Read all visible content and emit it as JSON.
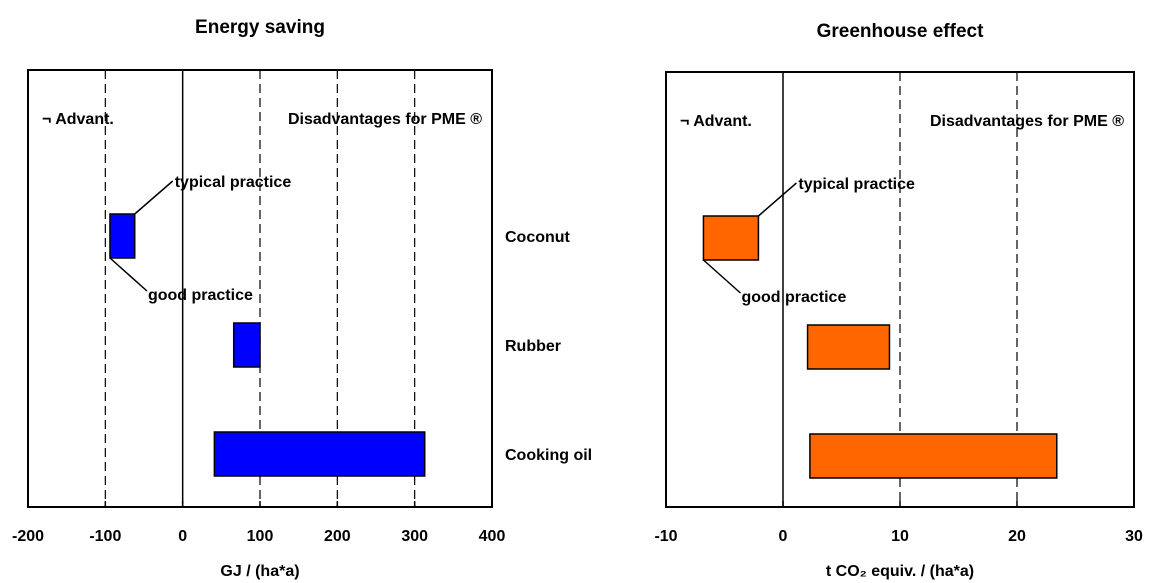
{
  "chart_data": [
    {
      "type": "floating-bar",
      "title": "Energy saving",
      "x_label": "GJ / (ha*a)",
      "categories": [
        "Coconut",
        "Rubber",
        "Cooking oil"
      ],
      "low": [
        -94,
        66,
        41
      ],
      "high": [
        -62,
        100,
        313
      ],
      "color": "#0000ff",
      "xlim": [
        -200,
        400
      ],
      "xticks": [
        -200,
        -100,
        0,
        100,
        200,
        300,
        400
      ],
      "grid": true,
      "zero_line": true,
      "advantage_note": {
        "text": "¬ Advant.",
        "color": "#1a8c1a"
      },
      "disadvantage_note": {
        "text": "Disadvantages for PME ®",
        "color": "#ff1a1a"
      },
      "annotations": [
        "typical practice",
        "good practice"
      ]
    },
    {
      "type": "floating-bar",
      "title": "Greenhouse effect",
      "x_label": "t CO₂ equiv. / (ha*a)",
      "low": [
        -6.8,
        2.1,
        2.3
      ],
      "high": [
        -2.1,
        9.1,
        23.4
      ],
      "color": "#ff6600",
      "xlim": [
        -10,
        30
      ],
      "xticks": [
        -10,
        0,
        10,
        20,
        30
      ],
      "grid": true,
      "zero_line": true,
      "advantage_note": {
        "text": "¬ Advant.",
        "color": "#1a8c1a"
      },
      "disadvantage_note": {
        "text": "Disadvantages for PME ®",
        "color": "#ff1a1a"
      },
      "annotations": [
        "typical practice",
        "good practice"
      ]
    }
  ]
}
